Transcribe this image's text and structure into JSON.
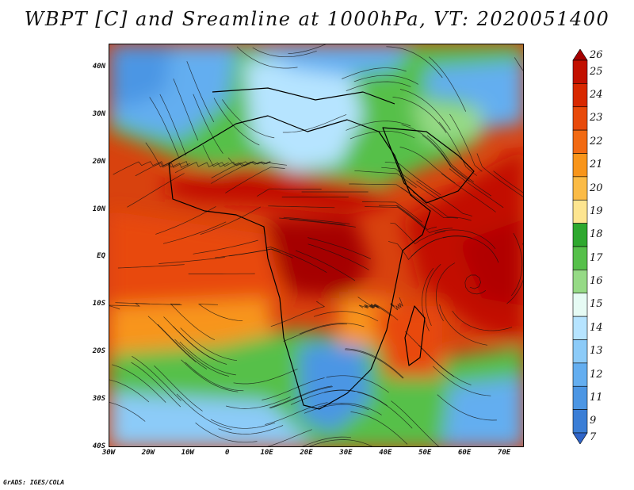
{
  "title": "WBPT [C] and Sreamline at 1000hPa, VT: 2020051400",
  "footer": "GrADS: IGES/COLA",
  "map": {
    "lon_range": [
      -30,
      75
    ],
    "lat_range": [
      -40,
      45
    ],
    "lat_ticks": [
      {
        "lat": 40,
        "label": "40N"
      },
      {
        "lat": 30,
        "label": "30N"
      },
      {
        "lat": 20,
        "label": "20N"
      },
      {
        "lat": 10,
        "label": "10N"
      },
      {
        "lat": 0,
        "label": "EQ"
      },
      {
        "lat": -10,
        "label": "10S"
      },
      {
        "lat": -20,
        "label": "20S"
      },
      {
        "lat": -30,
        "label": "30S"
      },
      {
        "lat": -40,
        "label": "40S"
      }
    ],
    "lon_ticks": [
      {
        "lon": -30,
        "label": "30W"
      },
      {
        "lon": -20,
        "label": "20W"
      },
      {
        "lon": -10,
        "label": "10W"
      },
      {
        "lon": 0,
        "label": "0"
      },
      {
        "lon": 10,
        "label": "10E"
      },
      {
        "lon": 20,
        "label": "20E"
      },
      {
        "lon": 30,
        "label": "30E"
      },
      {
        "lon": 40,
        "label": "40E"
      },
      {
        "lon": 50,
        "label": "50E"
      },
      {
        "lon": 60,
        "label": "60E"
      },
      {
        "lon": 70,
        "label": "70E"
      }
    ]
  },
  "colorbar": {
    "levels": [
      {
        "label": "26",
        "color": "#a50000"
      },
      {
        "label": "25",
        "color": "#c21000"
      },
      {
        "label": "24",
        "color": "#d82800"
      },
      {
        "label": "23",
        "color": "#e84a0a"
      },
      {
        "label": "22",
        "color": "#f26a12"
      },
      {
        "label": "21",
        "color": "#f8951a"
      },
      {
        "label": "20",
        "color": "#fbbb45"
      },
      {
        "label": "19",
        "color": "#fde590"
      },
      {
        "label": "18",
        "color": "#2ea82e"
      },
      {
        "label": "17",
        "color": "#56c04a"
      },
      {
        "label": "16",
        "color": "#96da86"
      },
      {
        "label": "15",
        "color": "#e6fbf4"
      },
      {
        "label": "14",
        "color": "#b6e4ff"
      },
      {
        "label": "13",
        "color": "#8ccbf8"
      },
      {
        "label": "12",
        "color": "#64aef0"
      },
      {
        "label": "11",
        "color": "#4c96e4"
      },
      {
        "label": "9",
        "color": "#3b7ed6"
      },
      {
        "label": "7",
        "color": "#2f64c8"
      }
    ]
  }
}
